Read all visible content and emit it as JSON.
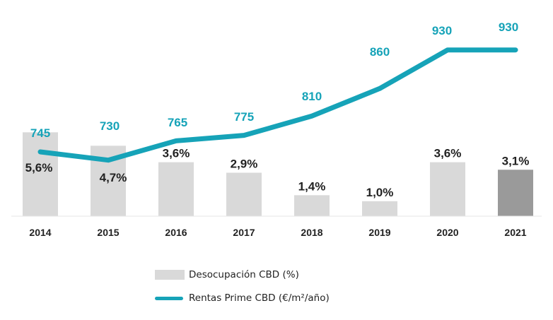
{
  "chart_data": {
    "type": "bar+line",
    "categories": [
      "2014",
      "2015",
      "2016",
      "2017",
      "2018",
      "2019",
      "2020",
      "2021"
    ],
    "series": [
      {
        "name": "Desocupación CBD (%)",
        "type": "bar",
        "values": [
          5.6,
          4.7,
          3.6,
          2.9,
          1.4,
          1.0,
          3.6,
          3.1
        ],
        "labels": [
          "5,6%",
          "4,7%",
          "3,6%",
          "2,9%",
          "1,4%",
          "1,0%",
          "3,6%",
          "3,1%"
        ],
        "color": "#d9d9d9",
        "highlight_color": "#9a9a9a",
        "highlight_index": 7
      },
      {
        "name": "Rentas Prime CBD (€/m²/año)",
        "type": "line",
        "values": [
          745,
          730,
          765,
          775,
          810,
          860,
          930,
          930
        ],
        "labels": [
          "745",
          "730",
          "765",
          "775",
          "810",
          "860",
          "930",
          "930"
        ],
        "color": "#16a3b8"
      }
    ],
    "title": "",
    "xlabel": "",
    "ylabel": "",
    "grid": false,
    "legend_position": "bottom"
  }
}
